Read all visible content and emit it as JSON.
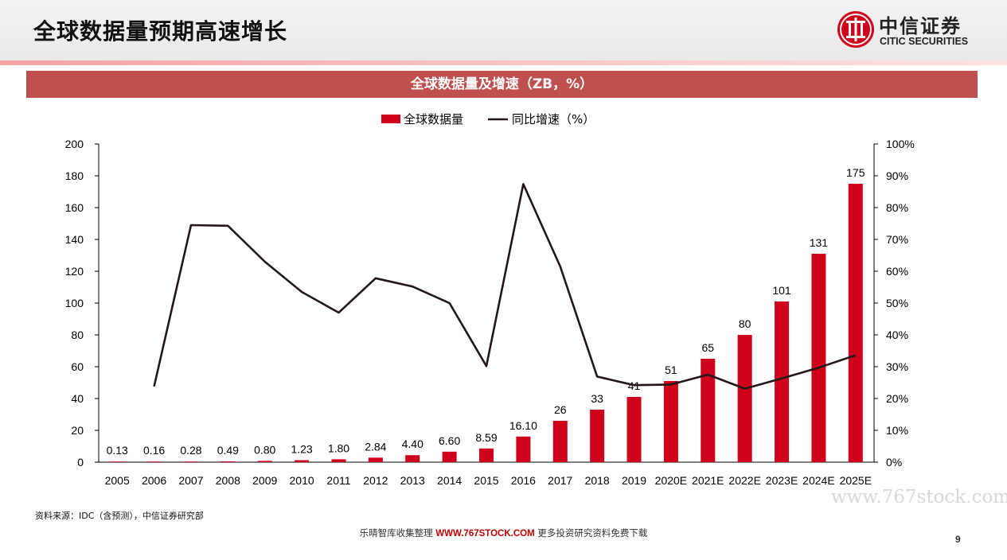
{
  "header": {
    "title": "全球数据量预期高速增长",
    "logo_cn": "中信证券",
    "logo_en": "CITIC SECURITIES"
  },
  "banner": {
    "text": "全球数据量及增速（ZB，%）"
  },
  "source": {
    "text": "资料来源：IDC（含预测），中信证券研究部"
  },
  "footer": {
    "prefix": "乐晴智库收集整理 ",
    "site": "WWW.767STOCK.COM",
    "suffix": " 更多投资研究资料免费下载"
  },
  "watermark": "www.767stock.com",
  "page_number": "9",
  "colors": {
    "bar": "#d0021b",
    "line": "#231815",
    "banner": "#c0504d"
  },
  "chart_data": {
    "type": "bar",
    "categories": [
      "2005",
      "2006",
      "2007",
      "2008",
      "2009",
      "2010",
      "2011",
      "2012",
      "2013",
      "2014",
      "2015",
      "2016",
      "2017",
      "2018",
      "2019",
      "2020E",
      "2021E",
      "2022E",
      "2023E",
      "2024E",
      "2025E"
    ],
    "series": [
      {
        "name": "全球数据量",
        "type": "bar",
        "axis": "left",
        "values": [
          0.13,
          0.16,
          0.28,
          0.49,
          0.8,
          1.23,
          1.8,
          2.84,
          4.4,
          6.6,
          8.59,
          16.1,
          26,
          33,
          41,
          51,
          65,
          80,
          101,
          131,
          175
        ],
        "labels": [
          "0.13",
          "0.16",
          "0.28",
          "0.49",
          "0.80",
          "1.23",
          "1.80",
          "2.84",
          "4.40",
          "6.60",
          "8.59",
          "16.10",
          "26",
          "33",
          "41",
          "51",
          "65",
          "80",
          "101",
          "131",
          "175"
        ]
      },
      {
        "name": "同比增速（%）",
        "type": "line",
        "axis": "right",
        "values": [
          null,
          23.8,
          74.5,
          74.3,
          63.0,
          53.5,
          47.0,
          57.8,
          55.2,
          50.0,
          30.2,
          87.4,
          61.5,
          26.9,
          24.2,
          24.4,
          27.5,
          23.1,
          26.3,
          29.7,
          33.6
        ]
      }
    ],
    "ylim_left": [
      0,
      200
    ],
    "yticks_left": [
      "0",
      "20",
      "40",
      "60",
      "80",
      "100",
      "120",
      "140",
      "160",
      "180",
      "200"
    ],
    "ylim_right": [
      0,
      100
    ],
    "yticks_right": [
      "0%",
      "10%",
      "20%",
      "30%",
      "40%",
      "50%",
      "60%",
      "70%",
      "80%",
      "90%",
      "100%"
    ],
    "legend": "top-center",
    "grid": false
  }
}
